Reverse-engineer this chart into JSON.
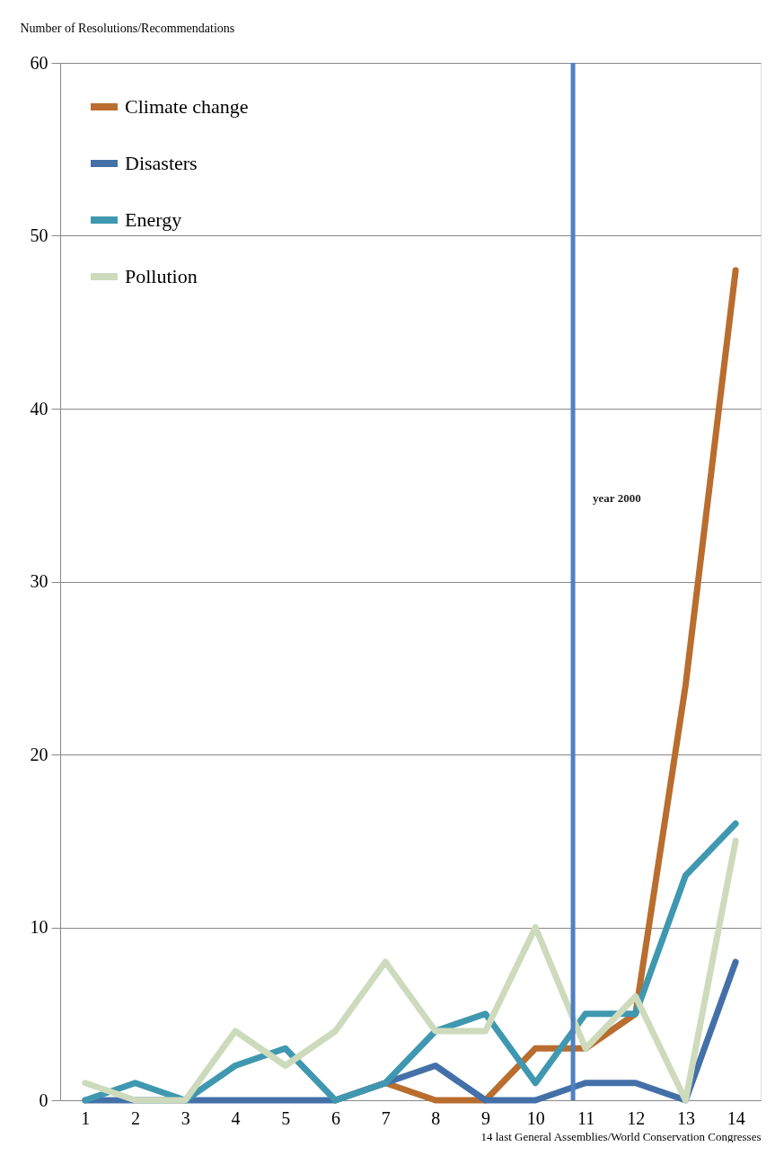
{
  "chart_data": {
    "type": "line",
    "ylabel": "Number of Resolutions/Recommendations",
    "xlabel": "14 last General Assemblies/World Conservation Congresses",
    "x": [
      1,
      2,
      3,
      4,
      5,
      6,
      7,
      8,
      9,
      10,
      11,
      12,
      13,
      14
    ],
    "xlim": [
      0.5,
      14.5
    ],
    "xticks": [
      1,
      2,
      3,
      4,
      5,
      6,
      7,
      8,
      9,
      10,
      11,
      12,
      13,
      14
    ],
    "ylim": [
      0,
      60
    ],
    "yticks": [
      0,
      10,
      20,
      30,
      40,
      50,
      60
    ],
    "series": [
      {
        "name": "Climate change",
        "color": "#b96d2e",
        "values": [
          null,
          null,
          null,
          null,
          null,
          0,
          1,
          0,
          0,
          3,
          3,
          5,
          24,
          48
        ]
      },
      {
        "name": "Disasters",
        "color": "#4470a8",
        "values": [
          0,
          0,
          0,
          0,
          0,
          0,
          1,
          2,
          0,
          0,
          1,
          1,
          0,
          8
        ]
      },
      {
        "name": "Energy",
        "color": "#3f98b0",
        "values": [
          0,
          1,
          0,
          2,
          3,
          0,
          1,
          4,
          5,
          1,
          5,
          5,
          13,
          16
        ]
      },
      {
        "name": "Pollution",
        "color": "#cddbbc",
        "values": [
          1,
          0,
          0,
          4,
          2,
          4,
          8,
          4,
          4,
          10,
          3,
          6,
          0,
          15
        ]
      }
    ],
    "ref_lines": [
      {
        "axis": "x",
        "value": 10.75,
        "label": "year 2000",
        "color": "#4f81c2"
      }
    ],
    "grid": "y",
    "legend": "top left",
    "line_style": "solid",
    "marker": "none"
  }
}
